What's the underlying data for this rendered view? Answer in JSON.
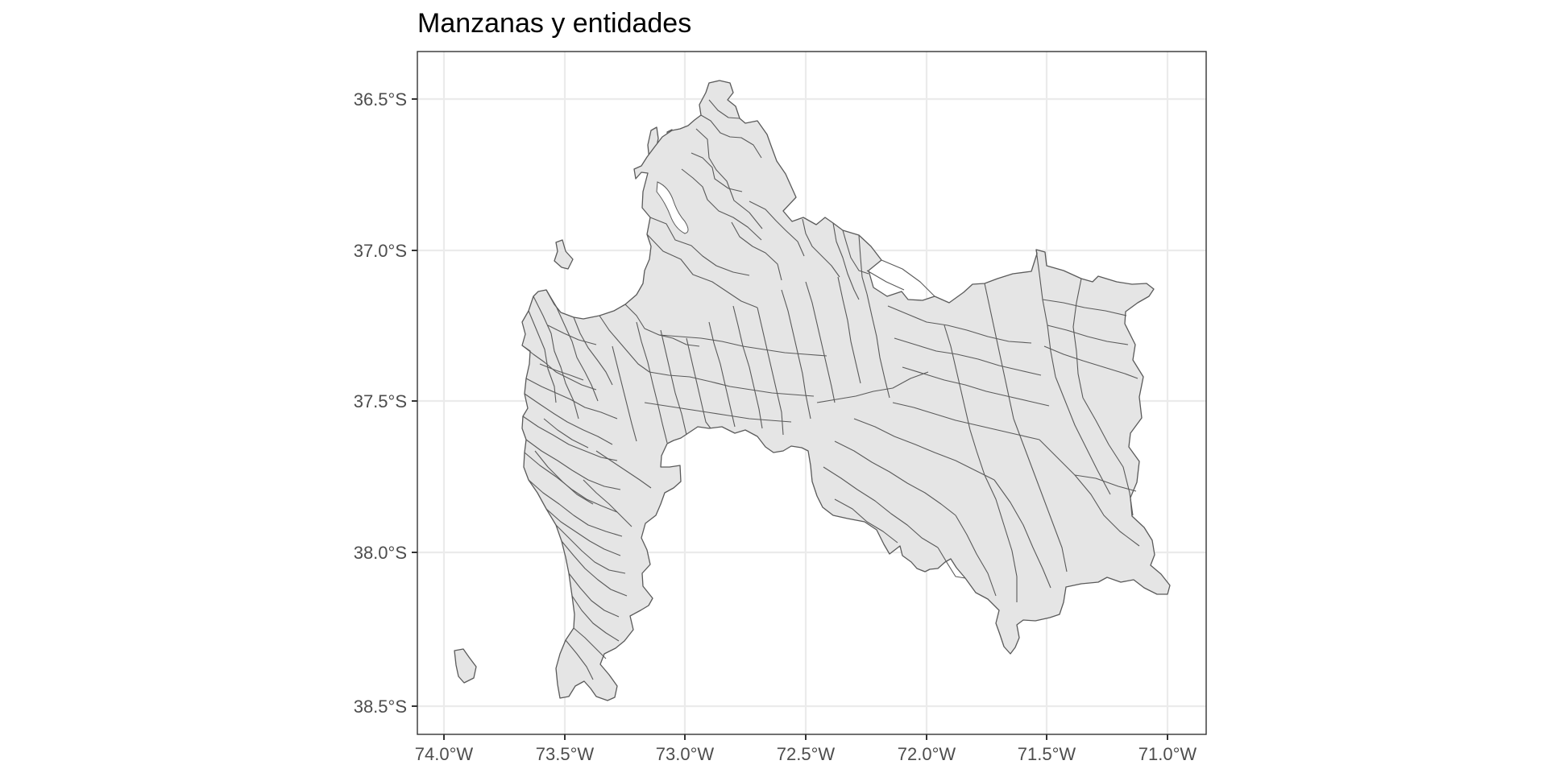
{
  "title": "Manzanas y entidades",
  "axes": {
    "x_ticks": [
      "74.0°W",
      "73.5°W",
      "73.0°W",
      "72.5°W",
      "72.0°W",
      "71.5°W",
      "71.0°W"
    ],
    "y_ticks": [
      "36.5°S",
      "37.0°S",
      "37.5°S",
      "38.0°S",
      "38.5°S"
    ]
  },
  "map": {
    "theme": "bw",
    "grid": true,
    "fill_color": "#e5e5e5",
    "border_color": "#5a5a5a"
  }
}
